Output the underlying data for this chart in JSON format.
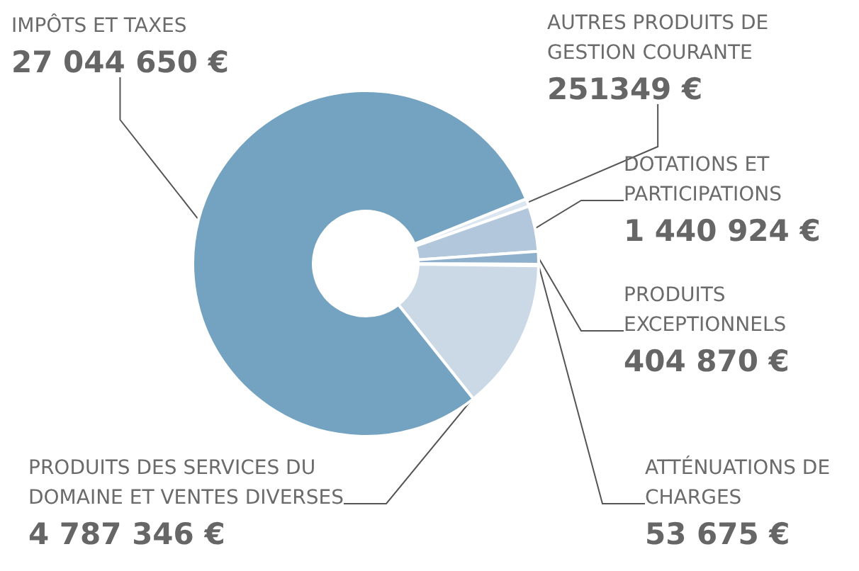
{
  "chart_data": {
    "type": "donut",
    "categories": [
      "AUTRES PRODUITS DE GESTION COURANTE",
      "DOTATIONS ET PARTICIPATIONS",
      "PRODUITS EXCEPTIONNELS",
      "ATTÉNUATIONS DE CHARGES",
      "PRODUITS DES SERVICES DU DOMAINE ET VENTES DIVERSES",
      "IMPÔTS ET TAXES"
    ],
    "values": [
      251349,
      1440924,
      404870,
      53675,
      4787346,
      27044650
    ],
    "value_labels": [
      "251349 €",
      "1 440 924 €",
      "404 870 €",
      "53 675 €",
      "4 787 346 €",
      "27 044 650 €"
    ],
    "colors": [
      "#dce6f0",
      "#b3c7dc",
      "#8fb0cc",
      "#dce6f0",
      "#cbd8e6",
      "#74a2c1"
    ]
  }
}
